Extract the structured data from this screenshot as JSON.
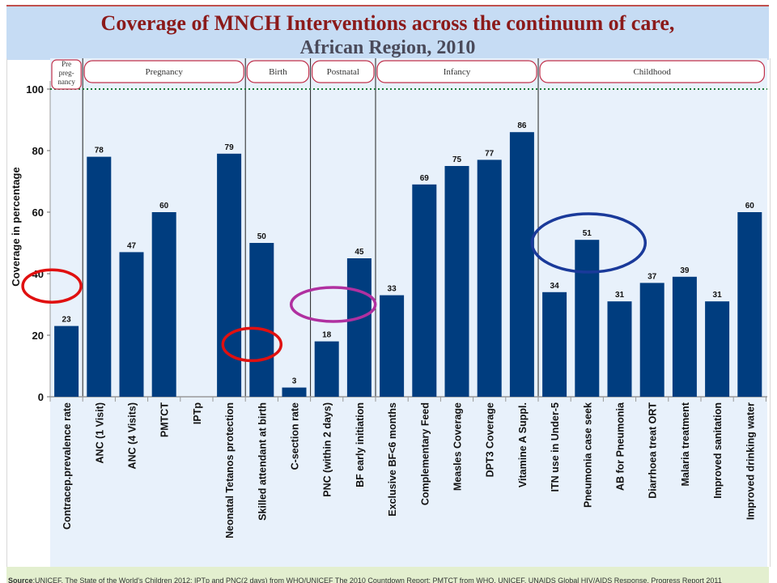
{
  "header": {
    "title_line1": "Coverage of MNCH Interventions across the continuum of care,",
    "title_line2": "African Region, 2010"
  },
  "footer": {
    "source_label": "Source",
    "source_text": ":UNICEF, The State of the World's Children 2012; IPTp and PNC(2 days) from WHO/UNICEF The 2010 Countdown Report; PMTCT from WHO, UNICEF, UNAIDS Global HIV/AIDS Response, Progress Report 2011"
  },
  "chart_data": {
    "type": "bar",
    "ylabel": "Coverage  in percentage",
    "ylim": [
      0,
      110
    ],
    "yticks": [
      0,
      20,
      40,
      60,
      80,
      100
    ],
    "reference_line": 100,
    "categories": [
      "Contracep.prevalence rate",
      "ANC (1 Visit)",
      "ANC (4 Visits)",
      "PMTCT",
      "IPTp",
      "Neonatal Tetanos protection",
      "Skilled attendant at birth",
      "C-section rate",
      "PNC (within 2 days)",
      "BF early initiation",
      "Exclusive BF<6 months",
      "Complementary Feed",
      "Measles Coverage",
      "DPT3 Coverage",
      "Vitamine A Suppl.",
      "ITN use in Under-5",
      "Pneumonia case seek",
      "AB for Pneumonia",
      "Diarrhoea treat ORT",
      "Malaria treatment",
      "Improved sanitation",
      "Improved drinking water"
    ],
    "values": [
      23,
      78,
      47,
      60,
      null,
      79,
      50,
      3,
      18,
      45,
      33,
      69,
      75,
      77,
      86,
      34,
      51,
      31,
      37,
      39,
      31,
      60
    ],
    "stages": [
      {
        "label": "Pre preg- nancy",
        "from": 0,
        "to": 0
      },
      {
        "label": "Pregnancy",
        "from": 1,
        "to": 5
      },
      {
        "label": "Birth",
        "from": 6,
        "to": 7
      },
      {
        "label": "Postnatal",
        "from": 8,
        "to": 9
      },
      {
        "label": "Infancy",
        "from": 10,
        "to": 14
      },
      {
        "label": "Childhood",
        "from": 15,
        "to": 21
      }
    ],
    "colors": {
      "bar": "#003d7f",
      "stage_border": "#c0304a",
      "reference_line": "#1a7a3a",
      "highlight_red": "#e01010",
      "highlight_magenta": "#b030a0",
      "highlight_blue": "#1a3a9a"
    },
    "highlights": [
      {
        "color": "red",
        "center_value": 36,
        "near_category": 0
      },
      {
        "color": "red",
        "center_value": 17,
        "near_category": 6
      },
      {
        "color": "magenta",
        "center_value": 30,
        "near_category": 8
      },
      {
        "color": "blue",
        "center_value": 50,
        "near_category": 16
      }
    ]
  }
}
